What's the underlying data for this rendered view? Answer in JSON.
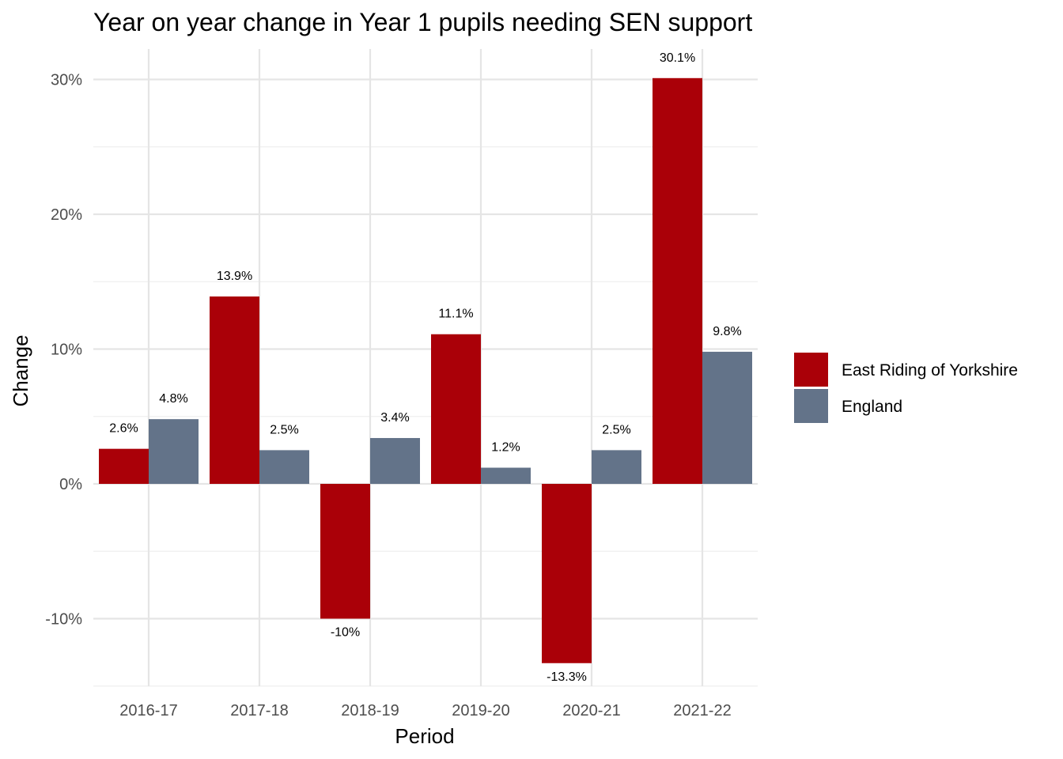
{
  "chart_data": {
    "type": "bar",
    "title": "Year on year change in Year 1 pupils needing SEN support",
    "xlabel": "Period",
    "ylabel": "Change",
    "categories": [
      "2016-17",
      "2017-18",
      "2018-19",
      "2019-20",
      "2020-21",
      "2021-22"
    ],
    "series": [
      {
        "name": "East Riding of Yorkshire",
        "color": "#aa0008",
        "values": [
          2.6,
          13.9,
          -10,
          11.1,
          -13.3,
          30.1
        ],
        "labels": [
          "2.6%",
          "13.9%",
          "-10%",
          "11.1%",
          "-13.3%",
          "30.1%"
        ]
      },
      {
        "name": "England",
        "color": "#637389",
        "values": [
          4.8,
          2.5,
          3.4,
          1.2,
          2.5,
          9.8
        ],
        "labels": [
          "4.8%",
          "2.5%",
          "3.4%",
          "1.2%",
          "2.5%",
          "9.8%"
        ]
      }
    ],
    "ylim": [
      -15,
      32
    ],
    "y_ticks": [
      -10,
      0,
      10,
      20,
      30
    ],
    "y_tick_labels": [
      "-10%",
      "0%",
      "10%",
      "20%",
      "30%"
    ],
    "grid": true,
    "legend_position": "right"
  }
}
